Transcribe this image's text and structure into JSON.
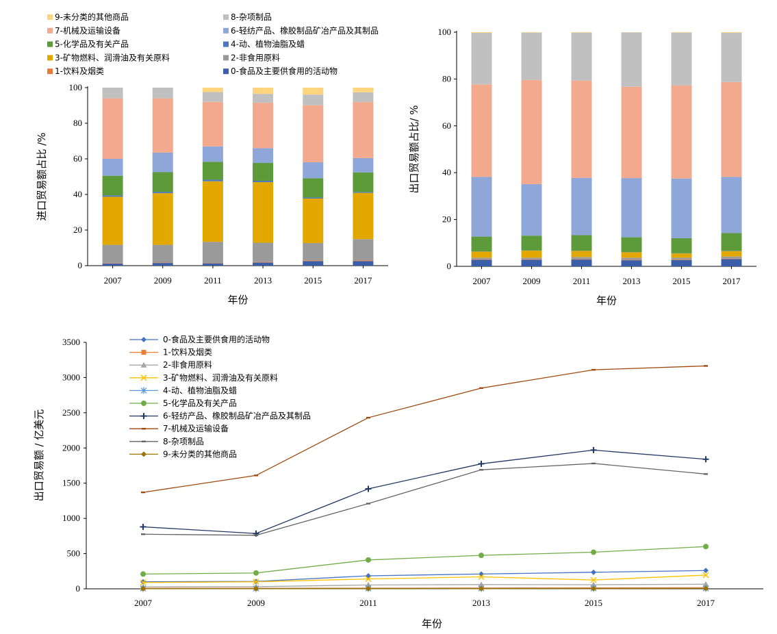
{
  "chart_data": [
    {
      "type": "bar",
      "stacked": true,
      "categories": [
        "2007",
        "2009",
        "2011",
        "2013",
        "2015",
        "2017"
      ],
      "xlabel": "年份",
      "ylabel": "进口贸易额占比 /%",
      "ylim": [
        0,
        100
      ],
      "yticks": [
        "0",
        "20",
        "40",
        "60",
        "80",
        "100"
      ],
      "legend_position": "top",
      "legend_order": [
        9,
        8,
        7,
        6,
        5,
        4,
        3,
        2,
        1,
        0
      ],
      "series": [
        {
          "name": "0-食品及主要供食用的活动物",
          "color": "#3a5ea8",
          "values": [
            1.2,
            1.5,
            1.3,
            1.7,
            2.6,
            2.6
          ]
        },
        {
          "name": "1-饮料及烟类",
          "color": "#e47b3a",
          "values": [
            0.2,
            0.2,
            0.2,
            0.3,
            0.4,
            0.4
          ]
        },
        {
          "name": "2-非食用原料",
          "color": "#9a9a9a",
          "values": [
            10.3,
            10.0,
            11.9,
            10.9,
            9.7,
            11.9
          ]
        },
        {
          "name": "3-矿物燃料、润滑油及有关原料",
          "color": "#e2a800",
          "values": [
            27.0,
            29.0,
            34.0,
            34.0,
            25.0,
            26.0
          ]
        },
        {
          "name": "4-动、植物油脂及蜡",
          "color": "#4a78b8",
          "values": [
            0.8,
            0.8,
            0.9,
            0.8,
            0.6,
            0.5
          ]
        },
        {
          "name": "5-化学品及有关产品",
          "color": "#5c9a3a",
          "values": [
            11.0,
            11.0,
            10.0,
            10.0,
            10.8,
            11.0
          ]
        },
        {
          "name": "6-轻纺产品、橡胶制品矿冶产品及其制品",
          "color": "#8ea6d8",
          "values": [
            9.5,
            11.0,
            8.7,
            8.3,
            9.0,
            8.0
          ]
        },
        {
          "name": "7-机械及运输设备",
          "color": "#f2a98e",
          "values": [
            34.0,
            30.5,
            25.0,
            25.5,
            32.0,
            31.5
          ]
        },
        {
          "name": "8-杂项制品",
          "color": "#c0c0c0",
          "values": [
            6.0,
            6.0,
            5.5,
            5.0,
            6.0,
            5.5
          ]
        },
        {
          "name": "9-未分类的其他商品",
          "color": "#fcd57e",
          "values": [
            0.0,
            0.0,
            2.5,
            3.5,
            3.9,
            2.6
          ]
        }
      ]
    },
    {
      "type": "bar",
      "stacked": true,
      "categories": [
        "2007",
        "2009",
        "2011",
        "2013",
        "2015",
        "2017"
      ],
      "xlabel": "年份",
      "ylabel": "出口贸易额占比/ %",
      "ylim": [
        0,
        100
      ],
      "yticks": [
        "0",
        "20",
        "40",
        "60",
        "80",
        "100"
      ],
      "series": [
        {
          "name": "0-食品及主要供食用的活动物",
          "color": "#3a5ea8",
          "values": [
            2.8,
            2.8,
            2.9,
            2.6,
            2.7,
            3.1
          ]
        },
        {
          "name": "1-饮料及烟类",
          "color": "#e47b3a",
          "values": [
            0.2,
            0.2,
            0.2,
            0.2,
            0.2,
            0.2
          ]
        },
        {
          "name": "2-非食用原料",
          "color": "#9a9a9a",
          "values": [
            0.7,
            0.7,
            0.9,
            0.9,
            0.8,
            0.9
          ]
        },
        {
          "name": "3-矿物燃料、润滑油及有关原料",
          "color": "#e2a800",
          "values": [
            2.6,
            3.0,
            2.6,
            2.3,
            1.8,
            2.3
          ]
        },
        {
          "name": "4-动、植物油脂及蜡",
          "color": "#4a78b8",
          "values": [
            0.1,
            0.1,
            0.1,
            0.1,
            0.1,
            0.1
          ]
        },
        {
          "name": "5-化学品及有关产品",
          "color": "#5c9a3a",
          "values": [
            6.3,
            6.3,
            6.6,
            6.3,
            6.4,
            7.6
          ]
        },
        {
          "name": "6-轻纺产品、橡胶制品矿冶产品及其制品",
          "color": "#8ea6d8",
          "values": [
            25.5,
            22.0,
            24.5,
            25.3,
            25.5,
            24.0
          ]
        },
        {
          "name": "7-机械及运输设备",
          "color": "#f2a98e",
          "values": [
            39.5,
            44.5,
            41.5,
            39.0,
            39.8,
            40.5
          ]
        },
        {
          "name": "8-杂项制品",
          "color": "#c0c0c0",
          "values": [
            22.0,
            20.2,
            20.5,
            23.2,
            22.5,
            21.0
          ]
        },
        {
          "name": "9-未分类的其他商品",
          "color": "#fcd57e",
          "values": [
            0.3,
            0.2,
            0.2,
            0.1,
            0.2,
            0.3
          ]
        }
      ]
    },
    {
      "type": "line",
      "x": [
        "2007",
        "2009",
        "2011",
        "2013",
        "2015",
        "2017"
      ],
      "xlabel": "年份",
      "ylabel": "出口贸易额 / 亿美元",
      "ylim": [
        0,
        3500
      ],
      "yticks": [
        "0",
        "500",
        "1000",
        "1500",
        "2000",
        "2500",
        "3000",
        "3500"
      ],
      "legend_position": "top-left",
      "series": [
        {
          "name": "0-食品及主要供食用的活动物",
          "color": "#4472c4",
          "marker": "diamond",
          "values": [
            100,
            105,
            185,
            210,
            235,
            260
          ]
        },
        {
          "name": "1-饮料及烟类",
          "color": "#ed7d31",
          "marker": "square",
          "values": [
            8,
            8,
            10,
            12,
            14,
            16
          ]
        },
        {
          "name": "2-非食用原料",
          "color": "#a5a5a5",
          "marker": "triangle",
          "values": [
            28,
            30,
            55,
            60,
            58,
            65
          ]
        },
        {
          "name": "3-矿物燃料、润滑油及有关原料",
          "color": "#ffc000",
          "marker": "x",
          "values": [
            90,
            100,
            140,
            170,
            125,
            195
          ]
        },
        {
          "name": "4-动、植物油脂及蜡",
          "color": "#5b9bd5",
          "marker": "asterisk",
          "values": [
            4,
            4,
            5,
            5,
            6,
            6
          ]
        },
        {
          "name": "5-化学品及有关产品",
          "color": "#70ad47",
          "marker": "circle",
          "values": [
            210,
            225,
            410,
            475,
            520,
            600
          ]
        },
        {
          "name": "6-轻纺产品、橡胶制品矿冶产品及其制品",
          "color": "#203864",
          "marker": "plus",
          "values": [
            880,
            785,
            1420,
            1775,
            1970,
            1840
          ]
        },
        {
          "name": "7-机械及运输设备",
          "color": "#9e480e",
          "marker": "dash",
          "values": [
            1370,
            1610,
            2430,
            2850,
            3110,
            3165
          ]
        },
        {
          "name": "8-杂项制品",
          "color": "#636363",
          "marker": "dash",
          "values": [
            775,
            760,
            1210,
            1690,
            1780,
            1630
          ]
        },
        {
          "name": "9-未分类的其他商品",
          "color": "#997300",
          "marker": "diamond",
          "values": [
            2,
            2,
            3,
            2,
            3,
            5
          ]
        }
      ]
    }
  ]
}
